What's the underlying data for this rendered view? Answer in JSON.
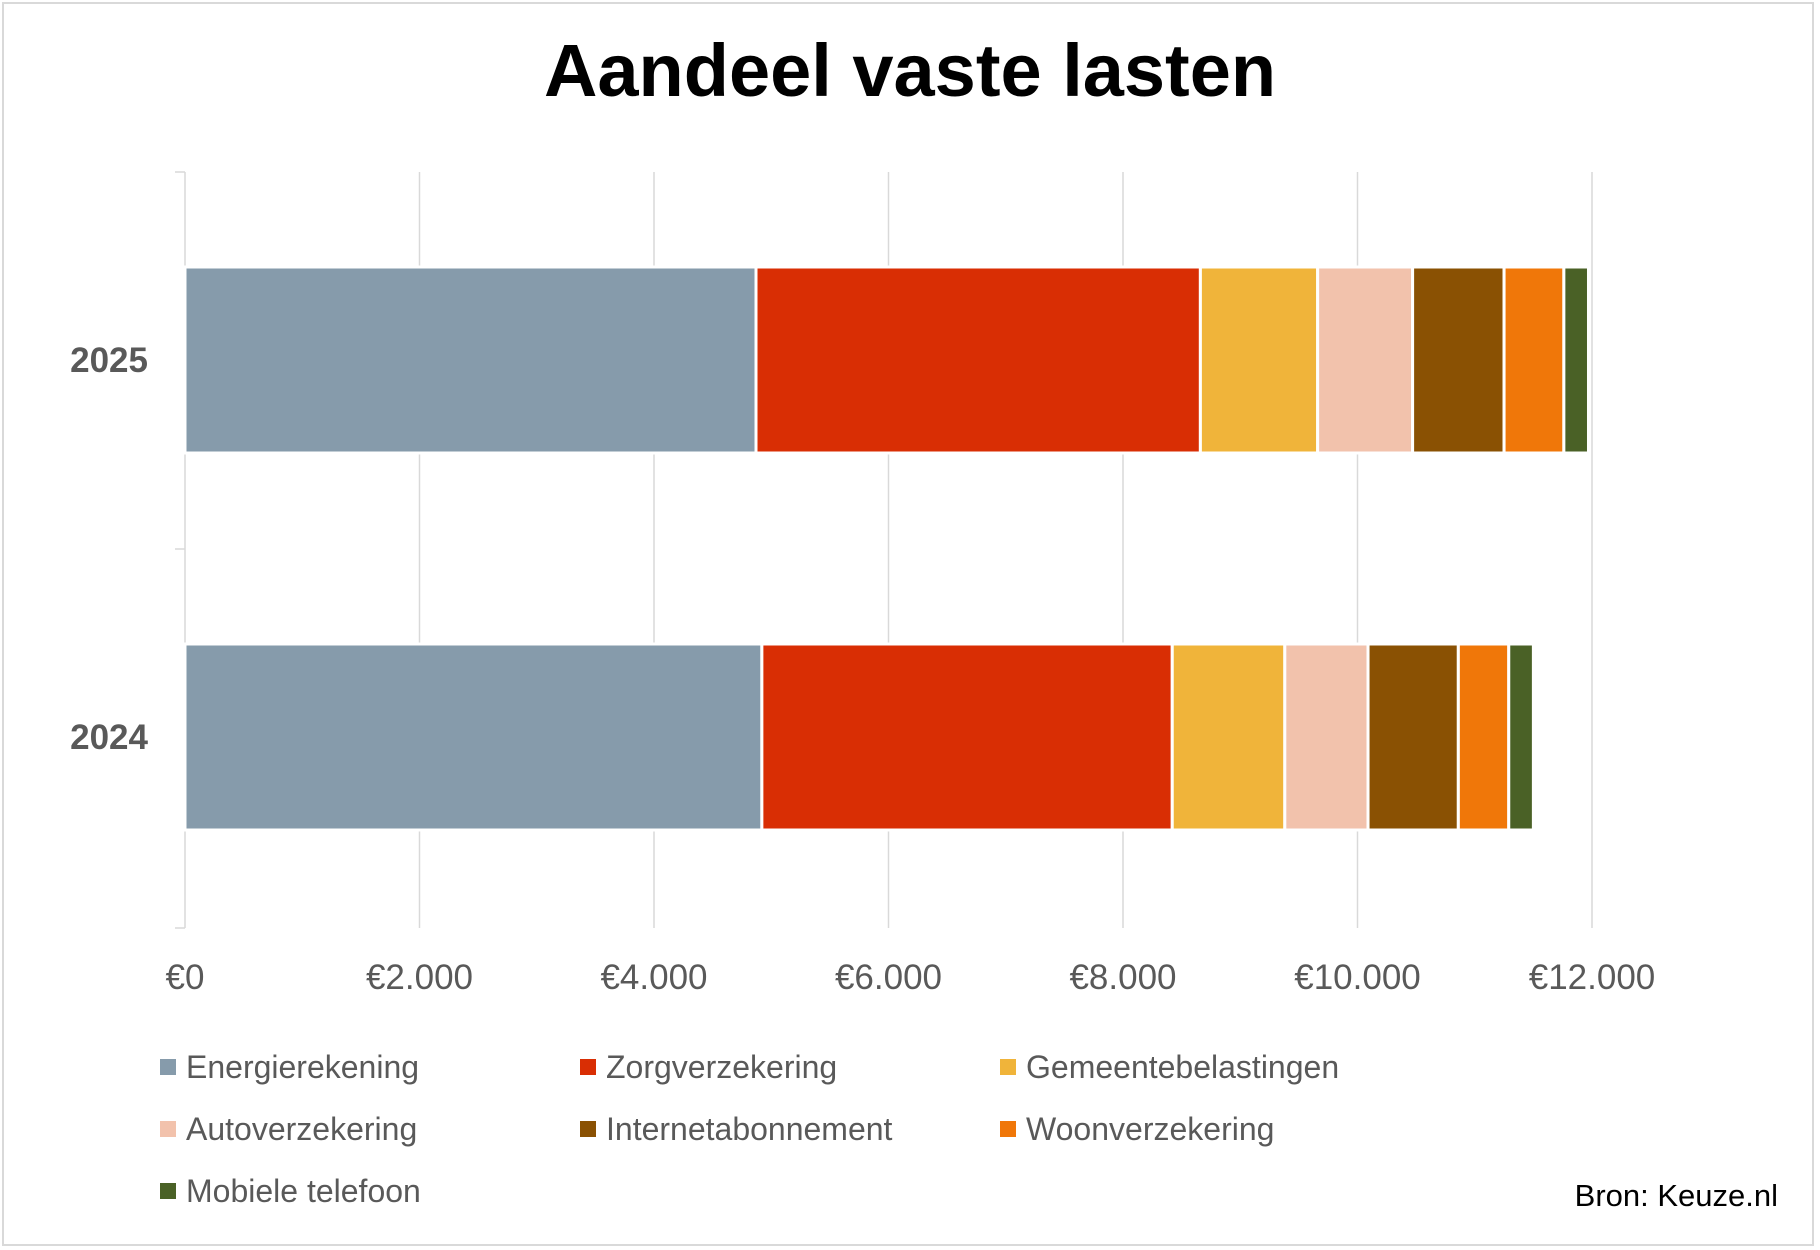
{
  "chart_data": {
    "type": "bar",
    "orientation": "horizontal",
    "stacked": true,
    "title": "Aandeel vaste lasten",
    "categories": [
      "2025",
      "2024"
    ],
    "series": [
      {
        "name": "Energierekening",
        "color": "#869bab",
        "values": [
          4870,
          4920
        ]
      },
      {
        "name": "Zorgverzekering",
        "color": "#d92e04",
        "values": [
          3790,
          3500
        ]
      },
      {
        "name": "Gemeentebelastingen",
        "color": "#f0b43a",
        "values": [
          1000,
          960
        ]
      },
      {
        "name": "Autoverzekering",
        "color": "#f2c2ac",
        "values": [
          810,
          710
        ]
      },
      {
        "name": "Internetabonnement",
        "color": "#8a5103",
        "values": [
          780,
          770
        ]
      },
      {
        "name": "Woonverzekering",
        "color": "#f07709",
        "values": [
          510,
          430
        ]
      },
      {
        "name": "Mobiele telefoon",
        "color": "#4a6126",
        "values": [
          210,
          210
        ]
      }
    ],
    "x_ticks": [
      "€0",
      "€2.000",
      "€4.000",
      "€6.000",
      "€8.000",
      "€10.000",
      "€12.000"
    ],
    "x_tick_values": [
      0,
      2000,
      4000,
      6000,
      8000,
      10000,
      12000
    ],
    "xlim": [
      0,
      12000
    ],
    "xlabel": "",
    "ylabel": "",
    "grid": "vertical",
    "legend_position": "bottom"
  },
  "source": "Bron: Keuze.nl"
}
